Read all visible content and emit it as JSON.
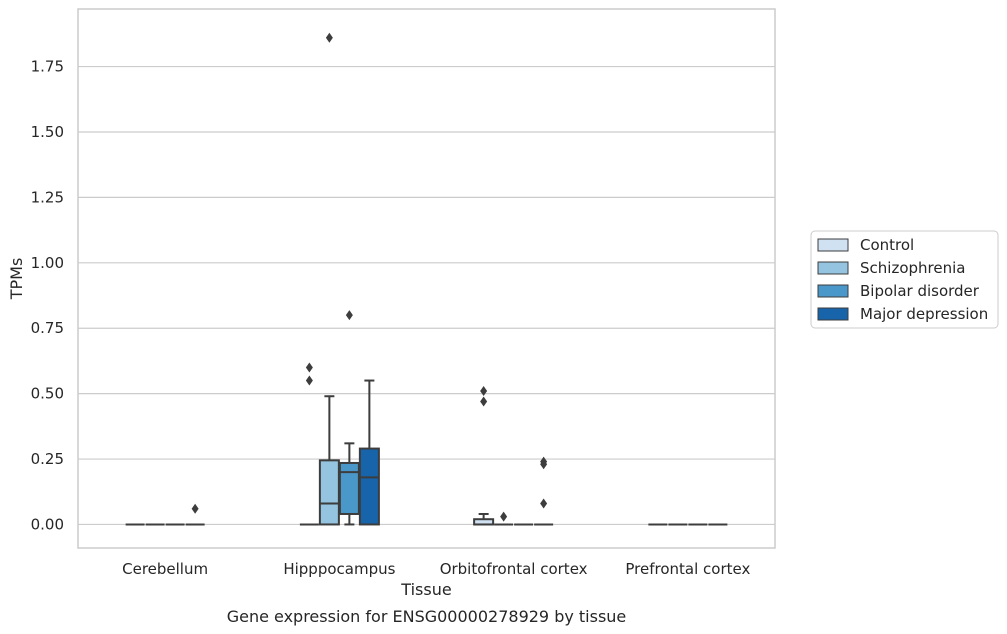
{
  "chart_data": {
    "type": "box",
    "title": "Gene expression for ENSG00000278929 by tissue",
    "xlabel": "Tissue",
    "ylabel": "TPMs",
    "ylim": [
      -0.09,
      1.97
    ],
    "yticks": [
      "0.00",
      "0.25",
      "0.50",
      "0.75",
      "1.00",
      "1.25",
      "1.50",
      "1.75"
    ],
    "ytick_values": [
      0,
      0.25,
      0.5,
      0.75,
      1.0,
      1.25,
      1.5,
      1.75
    ],
    "grid": "horizontal",
    "legend_position": "right",
    "categories": [
      "Cerebellum",
      "Hipppocampus",
      "Orbitofrontal cortex",
      "Prefrontal cortex"
    ],
    "series": [
      {
        "name": "Control",
        "color": "#d0e1f2",
        "boxes": [
          {
            "q1": 0,
            "median": 0,
            "q3": 0,
            "whislo": 0,
            "whishi": 0,
            "fliers": []
          },
          {
            "q1": 0,
            "median": 0,
            "q3": 0,
            "whislo": 0,
            "whishi": 0,
            "fliers": [
              0.55,
              0.6
            ]
          },
          {
            "q1": 0,
            "median": 0,
            "q3": 0.02,
            "whislo": 0,
            "whishi": 0.04,
            "fliers": [
              0.47,
              0.51
            ]
          },
          {
            "q1": 0,
            "median": 0,
            "q3": 0,
            "whislo": 0,
            "whishi": 0,
            "fliers": []
          }
        ]
      },
      {
        "name": "Schizophrenia",
        "color": "#94c4df",
        "boxes": [
          {
            "q1": 0,
            "median": 0,
            "q3": 0,
            "whislo": 0,
            "whishi": 0,
            "fliers": []
          },
          {
            "q1": 0,
            "median": 0.08,
            "q3": 0.245,
            "whislo": 0,
            "whishi": 0.49,
            "fliers": [
              1.86
            ]
          },
          {
            "q1": 0,
            "median": 0,
            "q3": 0,
            "whislo": 0,
            "whishi": 0,
            "fliers": [
              0.03
            ]
          },
          {
            "q1": 0,
            "median": 0,
            "q3": 0,
            "whislo": 0,
            "whishi": 0,
            "fliers": []
          }
        ]
      },
      {
        "name": "Bipolar disorder",
        "color": "#4a98c9",
        "boxes": [
          {
            "q1": 0,
            "median": 0,
            "q3": 0,
            "whislo": 0,
            "whishi": 0,
            "fliers": []
          },
          {
            "q1": 0.04,
            "median": 0.2,
            "q3": 0.235,
            "whislo": 0,
            "whishi": 0.31,
            "fliers": [
              0.8
            ]
          },
          {
            "q1": 0,
            "median": 0,
            "q3": 0,
            "whislo": 0,
            "whishi": 0,
            "fliers": []
          },
          {
            "q1": 0,
            "median": 0,
            "q3": 0,
            "whislo": 0,
            "whishi": 0,
            "fliers": []
          }
        ]
      },
      {
        "name": "Major depression",
        "color": "#1764ab",
        "boxes": [
          {
            "q1": 0,
            "median": 0,
            "q3": 0,
            "whislo": 0,
            "whishi": 0,
            "fliers": [
              0.06
            ]
          },
          {
            "q1": 0,
            "median": 0.18,
            "q3": 0.29,
            "whislo": 0,
            "whishi": 0.55,
            "fliers": []
          },
          {
            "q1": 0,
            "median": 0,
            "q3": 0,
            "whislo": 0,
            "whishi": 0,
            "fliers": [
              0.08,
              0.23,
              0.24
            ]
          },
          {
            "q1": 0,
            "median": 0,
            "q3": 0,
            "whislo": 0,
            "whishi": 0,
            "fliers": []
          }
        ]
      }
    ]
  }
}
